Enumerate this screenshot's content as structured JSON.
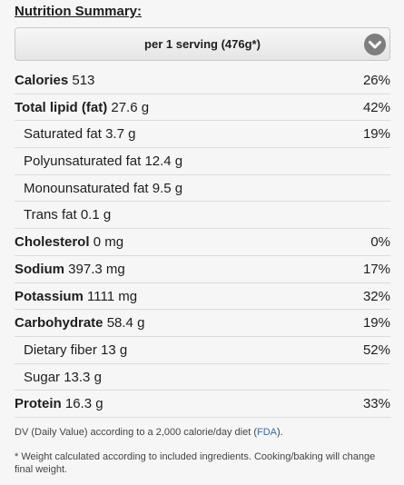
{
  "title": "Nutrition Summary:",
  "serving": {
    "label": "per 1 serving (476g*)",
    "icon": "chevron-down-icon"
  },
  "rows": [
    {
      "name": "Calories",
      "amount": "513",
      "pct": "26%",
      "bold": true,
      "indent": false
    },
    {
      "name": "Total lipid (fat)",
      "amount": "27.6 g",
      "pct": "42%",
      "bold": true,
      "indent": false
    },
    {
      "name": "Saturated fat",
      "amount": "3.7 g",
      "pct": "19%",
      "bold": false,
      "indent": true
    },
    {
      "name": "Polyunsaturated fat",
      "amount": "12.4 g",
      "pct": "",
      "bold": false,
      "indent": true
    },
    {
      "name": "Monounsaturated fat",
      "amount": "9.5 g",
      "pct": "",
      "bold": false,
      "indent": true
    },
    {
      "name": "Trans fat",
      "amount": "0.1 g",
      "pct": "",
      "bold": false,
      "indent": true
    },
    {
      "name": "Cholesterol",
      "amount": "0 mg",
      "pct": "0%",
      "bold": true,
      "indent": false
    },
    {
      "name": "Sodium",
      "amount": "397.3 mg",
      "pct": "17%",
      "bold": true,
      "indent": false
    },
    {
      "name": "Potassium",
      "amount": "1111 mg",
      "pct": "32%",
      "bold": true,
      "indent": false
    },
    {
      "name": "Carbohydrate",
      "amount": "58.4 g",
      "pct": "19%",
      "bold": true,
      "indent": false
    },
    {
      "name": "Dietary fiber",
      "amount": "13 g",
      "pct": "52%",
      "bold": false,
      "indent": true
    },
    {
      "name": "Sugar",
      "amount": "13.3 g",
      "pct": "",
      "bold": false,
      "indent": true
    },
    {
      "name": "Protein",
      "amount": "16.3 g",
      "pct": "33%",
      "bold": true,
      "indent": false
    }
  ],
  "dv_note": {
    "before": "DV (Daily Value) according to a 2,000 calorie/day diet (",
    "link": "FDA",
    "after": ")."
  },
  "weight_note": "* Weight calculated according to included ingredients. Cooking/baking will change final weight.",
  "colors": {
    "background": "#f6f6f6",
    "link": "#3a6ea5",
    "chevron_bg": "#7e7e7e"
  }
}
